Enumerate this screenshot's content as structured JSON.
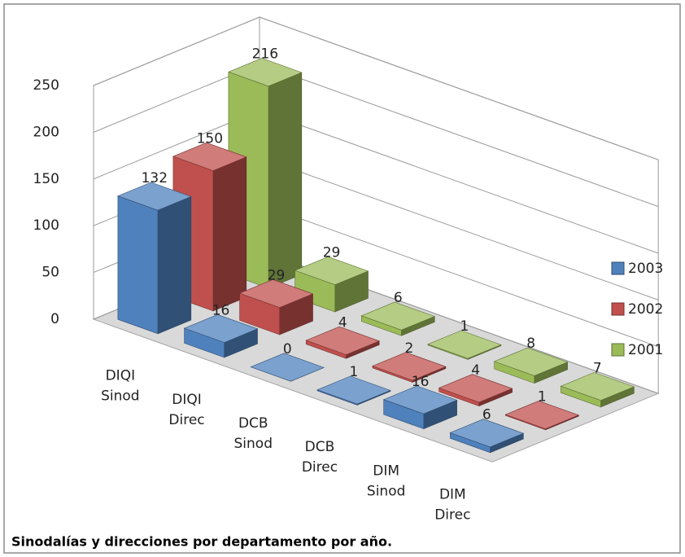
{
  "chart_data": {
    "type": "bar3d",
    "title": "Sinodalías y direcciones por departamento por año.",
    "categories": [
      [
        "DIQI",
        "Sinod"
      ],
      [
        "DIQI",
        "Direc"
      ],
      [
        "DCB",
        "Sinod"
      ],
      [
        "DCB",
        "Direc"
      ],
      [
        "DIM",
        "Sinod"
      ],
      [
        "DIM",
        "Direc"
      ]
    ],
    "series": [
      {
        "name": "2003",
        "color": "#4f81bd",
        "values": [
          132,
          16,
          0,
          1,
          16,
          6
        ]
      },
      {
        "name": "2002",
        "color": "#c0504d",
        "values": [
          150,
          29,
          4,
          2,
          4,
          1
        ]
      },
      {
        "name": "2001",
        "color": "#9bbb59",
        "values": [
          216,
          29,
          6,
          1,
          8,
          7
        ]
      }
    ],
    "ylim": [
      0,
      250
    ],
    "yticks": [
      0,
      50,
      100,
      150,
      200,
      250
    ],
    "grid": true,
    "legend": "right"
  }
}
